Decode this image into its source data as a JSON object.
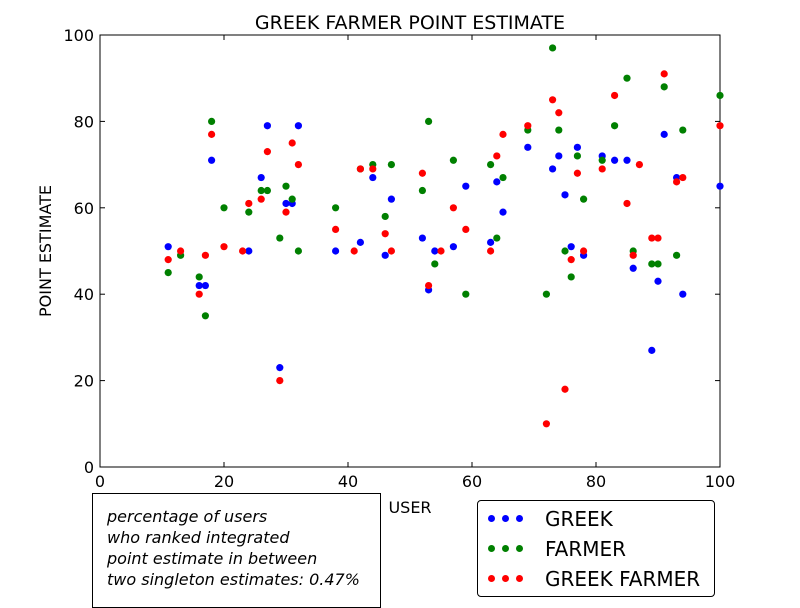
{
  "chart_data": {
    "type": "scatter",
    "title": "GREEK FARMER POINT ESTIMATE",
    "xlabel": "USER",
    "ylabel": "POINT ESTIMATE",
    "xlim": [
      0,
      100
    ],
    "ylim": [
      0,
      100
    ],
    "xticks": [
      0,
      20,
      40,
      60,
      80,
      100
    ],
    "yticks": [
      0,
      20,
      40,
      60,
      80,
      100
    ],
    "grid": false,
    "legend_position": "bottom-right, below axes",
    "series": [
      {
        "name": "GREEK",
        "color": "#0000ff",
        "points": [
          [
            11,
            51
          ],
          [
            16,
            42
          ],
          [
            17,
            42
          ],
          [
            18,
            71
          ],
          [
            24,
            50
          ],
          [
            26,
            67
          ],
          [
            27,
            79
          ],
          [
            29,
            23
          ],
          [
            30,
            61
          ],
          [
            31,
            61
          ],
          [
            32,
            79
          ],
          [
            38,
            50
          ],
          [
            42,
            52
          ],
          [
            44,
            67
          ],
          [
            46,
            49
          ],
          [
            47,
            62
          ],
          [
            52,
            53
          ],
          [
            53,
            41
          ],
          [
            54,
            50
          ],
          [
            57,
            51
          ],
          [
            59,
            65
          ],
          [
            63,
            52
          ],
          [
            64,
            66
          ],
          [
            65,
            59
          ],
          [
            69,
            74
          ],
          [
            73,
            69
          ],
          [
            74,
            72
          ],
          [
            75,
            63
          ],
          [
            76,
            51
          ],
          [
            77,
            74
          ],
          [
            78,
            49
          ],
          [
            81,
            72
          ],
          [
            83,
            71
          ],
          [
            85,
            71
          ],
          [
            86,
            46
          ],
          [
            89,
            27
          ],
          [
            90,
            43
          ],
          [
            91,
            77
          ],
          [
            93,
            67
          ],
          [
            94,
            40
          ],
          [
            100,
            65
          ]
        ]
      },
      {
        "name": "FARMER",
        "color": "#008000",
        "points": [
          [
            11,
            45
          ],
          [
            13,
            49
          ],
          [
            16,
            44
          ],
          [
            17,
            35
          ],
          [
            18,
            80
          ],
          [
            20,
            60
          ],
          [
            24,
            59
          ],
          [
            26,
            64
          ],
          [
            27,
            64
          ],
          [
            29,
            53
          ],
          [
            30,
            65
          ],
          [
            31,
            62
          ],
          [
            32,
            50
          ],
          [
            38,
            60
          ],
          [
            42,
            69
          ],
          [
            44,
            70
          ],
          [
            46,
            58
          ],
          [
            47,
            70
          ],
          [
            52,
            64
          ],
          [
            53,
            80
          ],
          [
            54,
            47
          ],
          [
            57,
            71
          ],
          [
            59,
            40
          ],
          [
            63,
            70
          ],
          [
            64,
            53
          ],
          [
            65,
            67
          ],
          [
            69,
            78
          ],
          [
            72,
            40
          ],
          [
            73,
            97
          ],
          [
            74,
            78
          ],
          [
            75,
            50
          ],
          [
            76,
            44
          ],
          [
            77,
            72
          ],
          [
            78,
            62
          ],
          [
            81,
            71
          ],
          [
            83,
            79
          ],
          [
            85,
            90
          ],
          [
            86,
            50
          ],
          [
            89,
            47
          ],
          [
            90,
            47
          ],
          [
            91,
            88
          ],
          [
            93,
            49
          ],
          [
            94,
            78
          ],
          [
            100,
            86
          ]
        ]
      },
      {
        "name": "GREEK FARMER",
        "color": "#ff0000",
        "points": [
          [
            11,
            48
          ],
          [
            13,
            50
          ],
          [
            16,
            40
          ],
          [
            17,
            49
          ],
          [
            18,
            77
          ],
          [
            20,
            51
          ],
          [
            23,
            50
          ],
          [
            24,
            61
          ],
          [
            26,
            62
          ],
          [
            27,
            73
          ],
          [
            29,
            20
          ],
          [
            30,
            59
          ],
          [
            31,
            75
          ],
          [
            32,
            70
          ],
          [
            38,
            55
          ],
          [
            41,
            50
          ],
          [
            42,
            69
          ],
          [
            44,
            69
          ],
          [
            46,
            54
          ],
          [
            47,
            50
          ],
          [
            52,
            68
          ],
          [
            53,
            42
          ],
          [
            55,
            50
          ],
          [
            57,
            60
          ],
          [
            59,
            55
          ],
          [
            63,
            50
          ],
          [
            64,
            72
          ],
          [
            65,
            77
          ],
          [
            69,
            79
          ],
          [
            72,
            10
          ],
          [
            73,
            85
          ],
          [
            74,
            82
          ],
          [
            75,
            18
          ],
          [
            76,
            48
          ],
          [
            77,
            68
          ],
          [
            78,
            50
          ],
          [
            81,
            69
          ],
          [
            83,
            86
          ],
          [
            85,
            61
          ],
          [
            86,
            49
          ],
          [
            87,
            70
          ],
          [
            89,
            53
          ],
          [
            90,
            53
          ],
          [
            91,
            91
          ],
          [
            93,
            66
          ],
          [
            94,
            67
          ],
          [
            100,
            79
          ]
        ]
      }
    ],
    "annotation": {
      "lines": [
        "percentage of users",
        "who ranked integrated",
        "point estimate in between",
        "two singleton estimates: 0.47%"
      ]
    }
  }
}
